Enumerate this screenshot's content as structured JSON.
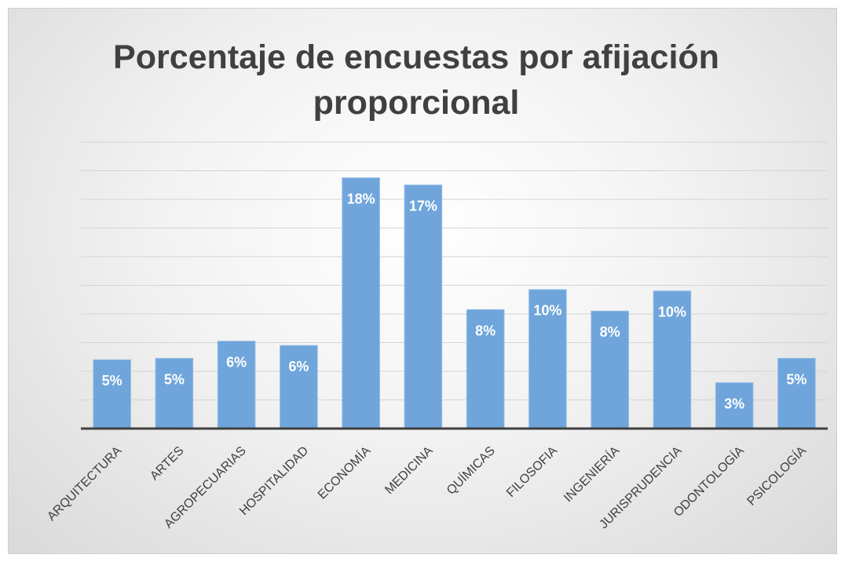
{
  "chart_data": {
    "type": "bar",
    "title": "Porcentaje de encuestas por afijación proporcional",
    "categories": [
      "ARQUITECTURA",
      "ARTES",
      "AGROPECUARIAS",
      "HOSPITALIDAD",
      "ECONOMÍA",
      "MEDICINA",
      "QUÍMICAS",
      "FILOSOFIA",
      "INGENIERÍA",
      "JURISPRUDENCIA",
      "ODONTOLOGÍA",
      "PSICOLOGÍA"
    ],
    "values": [
      4.8,
      4.9,
      6.1,
      5.8,
      17.5,
      17.0,
      8.3,
      9.7,
      8.2,
      9.6,
      3.2,
      4.9
    ],
    "value_labels": [
      "5%",
      "5%",
      "6%",
      "6%",
      "18%",
      "17%",
      "8%",
      "10%",
      "8%",
      "10%",
      "3%",
      "5%"
    ],
    "color": "#6fa5db",
    "ylim": [
      0,
      20
    ],
    "yticks": [
      0,
      2,
      4,
      6,
      8,
      10,
      12,
      14,
      16,
      18,
      20
    ],
    "grid": true
  }
}
